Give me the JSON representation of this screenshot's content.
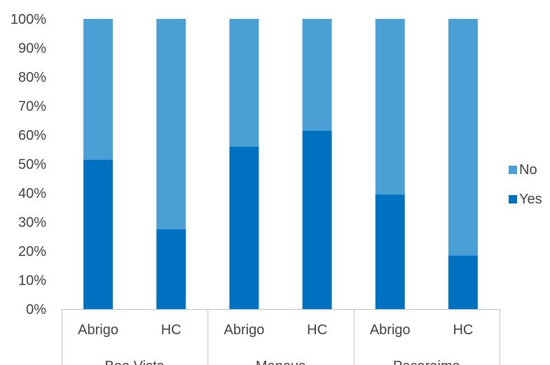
{
  "chart_data": {
    "type": "bar",
    "stacked": true,
    "percent": true,
    "groups": [
      "Boa Vista",
      "Manaus",
      "Pacaraima"
    ],
    "categories": [
      "Abrigo",
      "HC",
      "Abrigo",
      "HC",
      "Abrigo",
      "HC"
    ],
    "category_groups": [
      "Boa Vista",
      "Boa Vista",
      "Manaus",
      "Manaus",
      "Pacaraima",
      "Pacaraima"
    ],
    "series": [
      {
        "name": "Yes",
        "color": "#0070C0",
        "values": [
          51.5,
          27.5,
          56,
          61.5,
          39.5,
          18.5
        ]
      },
      {
        "name": "No",
        "color": "#4A9FD5",
        "values": [
          48.5,
          72.5,
          44,
          38.5,
          60.5,
          81.5
        ]
      }
    ],
    "y_ticks": [
      "0%",
      "10%",
      "20%",
      "30%",
      "40%",
      "50%",
      "60%",
      "70%",
      "80%",
      "90%",
      "100%"
    ],
    "ylim": [
      0,
      100
    ],
    "legend": {
      "position": "right",
      "order": [
        "No",
        "Yes"
      ]
    },
    "grid": false
  }
}
